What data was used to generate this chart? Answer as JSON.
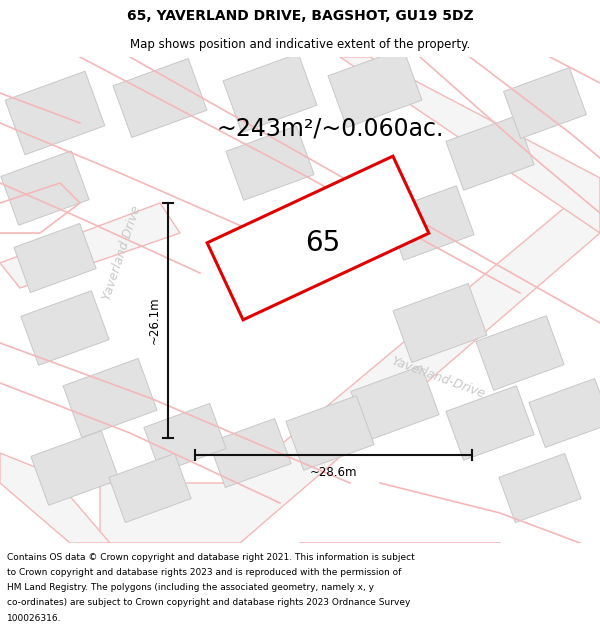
{
  "title_line1": "65, YAVERLAND DRIVE, BAGSHOT, GU19 5DZ",
  "title_line2": "Map shows position and indicative extent of the property.",
  "area_text": "~243m²/~0.060ac.",
  "label_65": "65",
  "dim_height": "~26.1m",
  "dim_width": "~28.6m",
  "road_label1": "Yaverland Drive",
  "road_label2": "Yaverland-Drive",
  "footer_lines": [
    "Contains OS data © Crown copyright and database right 2021. This information is subject",
    "to Crown copyright and database rights 2023 and is reproduced with the permission of",
    "HM Land Registry. The polygons (including the associated geometry, namely x, y",
    "co-ordinates) are subject to Crown copyright and database rights 2023 Ordnance Survey",
    "100026316."
  ],
  "bg_color": "#ffffff",
  "map_bg": "#ffffff",
  "plot_color_red": "#e00000",
  "road_stroke": "#f5b8b8",
  "road_fill": "#e8e8e8",
  "building_fill": "#e2e2e2",
  "building_edge": "#c8c8c8",
  "dim_line_color": "#111111",
  "road_text_color": "#c8c8c8",
  "title_fontsize": 10,
  "subtitle_fontsize": 8.5,
  "area_fontsize": 17,
  "label_fontsize": 20,
  "dim_fontsize": 8.5,
  "footer_fontsize": 6.5
}
